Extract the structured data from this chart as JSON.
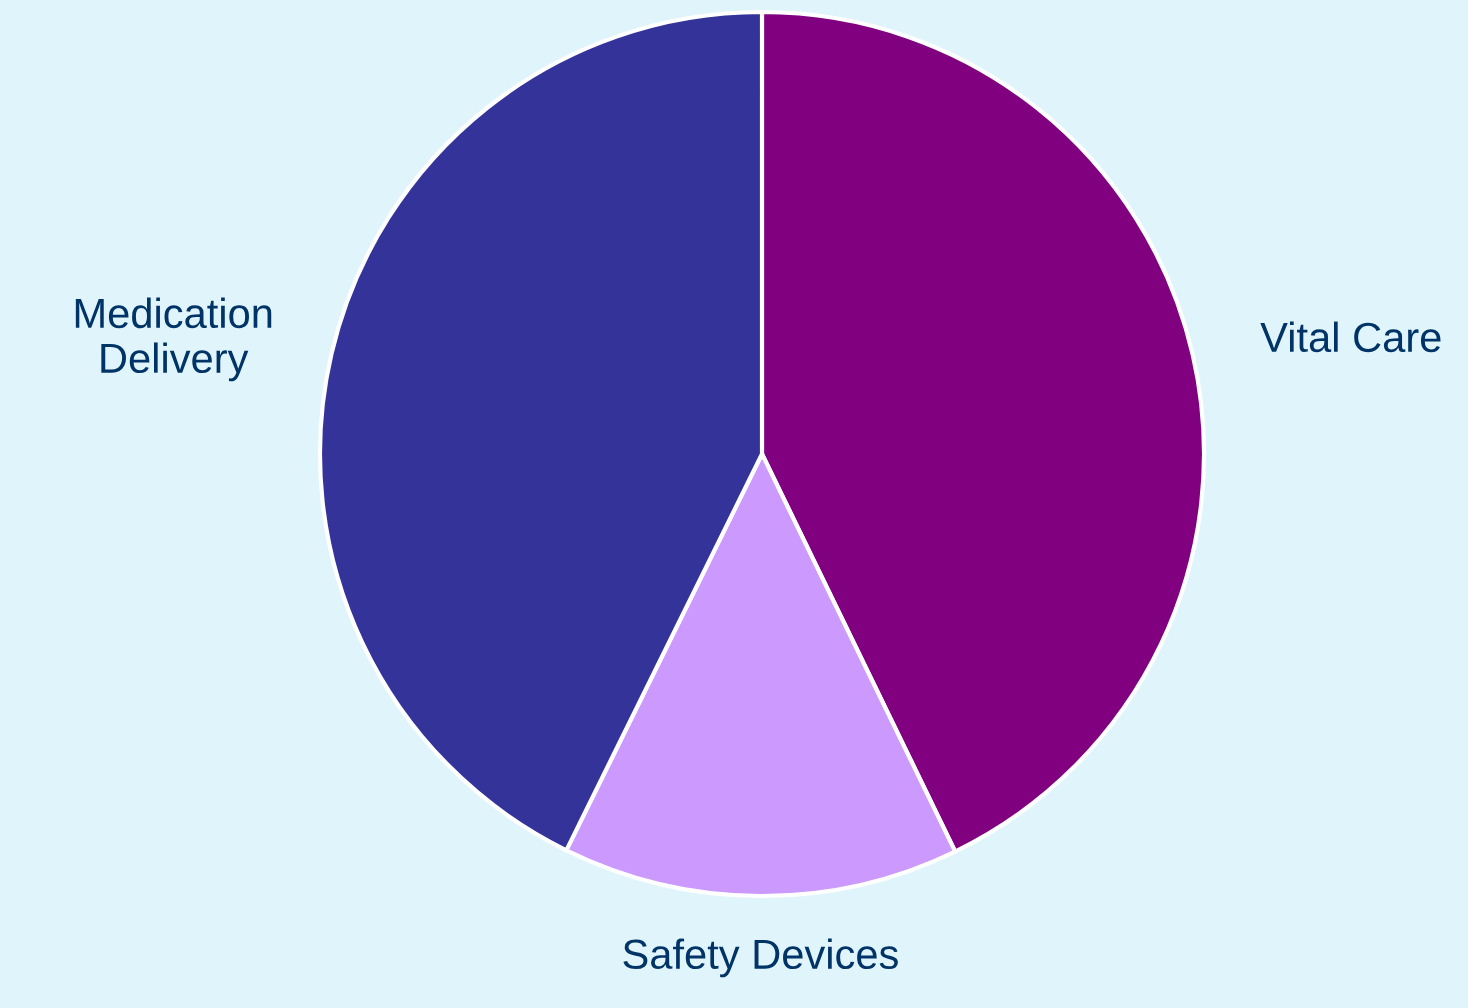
{
  "chart_data": {
    "type": "pie",
    "categories": [
      "Vital Care",
      "Safety Devices",
      "Medication\nDelivery"
    ],
    "values": [
      42.8,
      14.5,
      42.7
    ],
    "colors": [
      "#800080",
      "#cc99ff",
      "#333399"
    ]
  }
}
